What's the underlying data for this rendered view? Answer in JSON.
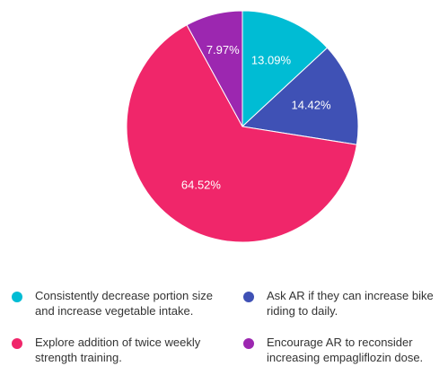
{
  "chart_data": {
    "type": "pie",
    "title": "",
    "slices": [
      {
        "label": "Consistently decrease portion size and increase vegetable intake.",
        "value": 13.09,
        "display": "13.09%",
        "color": "#00bcd4"
      },
      {
        "label": "Ask AR if they can increase bike riding to daily.",
        "value": 14.42,
        "display": "14.42%",
        "color": "#3f51b5"
      },
      {
        "label": "Explore addition of twice weekly strength training.",
        "value": 64.52,
        "display": "64.52%",
        "color": "#f0266a"
      },
      {
        "label": "Encourage AR to reconsider increasing empagliflozin dose.",
        "value": 7.97,
        "display": "7.97%",
        "color": "#9c27b0"
      }
    ],
    "start_angle_deg": 0,
    "direction": "clockwise",
    "legend_position": "bottom"
  }
}
